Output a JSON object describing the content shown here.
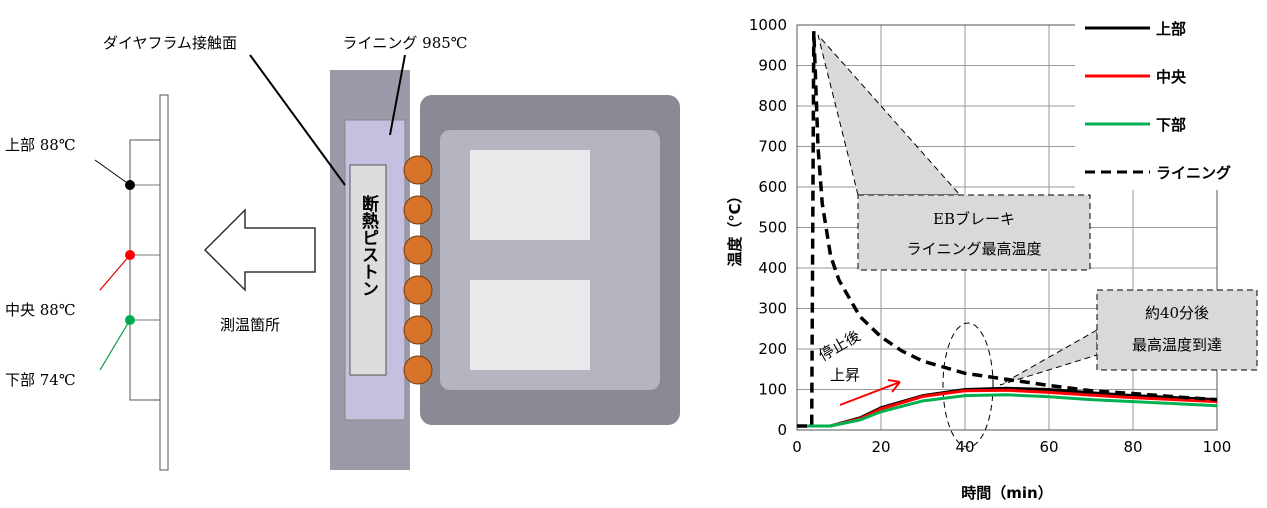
{
  "diagram": {
    "diaphragm": "ダイヤフラム接触面",
    "lining": "ライニング 985℃",
    "top": "上部 88℃",
    "middle": "中央 88℃",
    "bottom": "下部 74℃",
    "measure": "測温箇所",
    "piston": "断熱ピストン"
  },
  "chart_data": {
    "type": "line",
    "ylabel": "温度（℃）",
    "xlabel": "時間（min）",
    "xlim": [
      0,
      100
    ],
    "xticks": [
      0,
      20,
      40,
      60,
      80,
      100
    ],
    "ylim": [
      0,
      1000
    ],
    "yticks": [
      0,
      100,
      200,
      300,
      400,
      500,
      600,
      700,
      800,
      900,
      1000
    ],
    "grid": true,
    "legend": "upper right",
    "series": [
      {
        "name": "上部",
        "color": "#000000",
        "dash": "solid",
        "x": [
          0,
          8,
          15,
          20,
          30,
          40,
          50,
          60,
          70,
          80,
          90,
          100
        ],
        "values": [
          10,
          10,
          30,
          55,
          85,
          100,
          103,
          100,
          92,
          85,
          80,
          75
        ]
      },
      {
        "name": "中央",
        "color": "#ff0000",
        "dash": "solid",
        "x": [
          0,
          8,
          15,
          20,
          30,
          40,
          50,
          60,
          70,
          80,
          90,
          100
        ],
        "values": [
          10,
          10,
          28,
          52,
          83,
          97,
          98,
          93,
          86,
          80,
          75,
          70
        ]
      },
      {
        "name": "下部",
        "color": "#00b050",
        "dash": "solid",
        "x": [
          0,
          8,
          15,
          20,
          30,
          40,
          50,
          60,
          70,
          80,
          90,
          100
        ],
        "values": [
          10,
          10,
          25,
          45,
          72,
          85,
          87,
          82,
          75,
          70,
          65,
          60
        ]
      },
      {
        "name": "ライニング",
        "color": "#000000",
        "dash": "dashed",
        "x": [
          0,
          3.5,
          4,
          5,
          6,
          8,
          10,
          15,
          20,
          25,
          30,
          40,
          50,
          60,
          70,
          80,
          90,
          100
        ],
        "values": [
          10,
          10,
          985,
          700,
          560,
          430,
          370,
          280,
          230,
          195,
          170,
          140,
          125,
          110,
          97,
          90,
          82,
          75
        ]
      }
    ],
    "annotations": {
      "eb1": "EBブレーキ",
      "eb2": "ライニング最高温度",
      "peak1": "約40分後",
      "peak2": "最高温度到達",
      "stop1": "停止後",
      "stop2": "上昇"
    }
  }
}
